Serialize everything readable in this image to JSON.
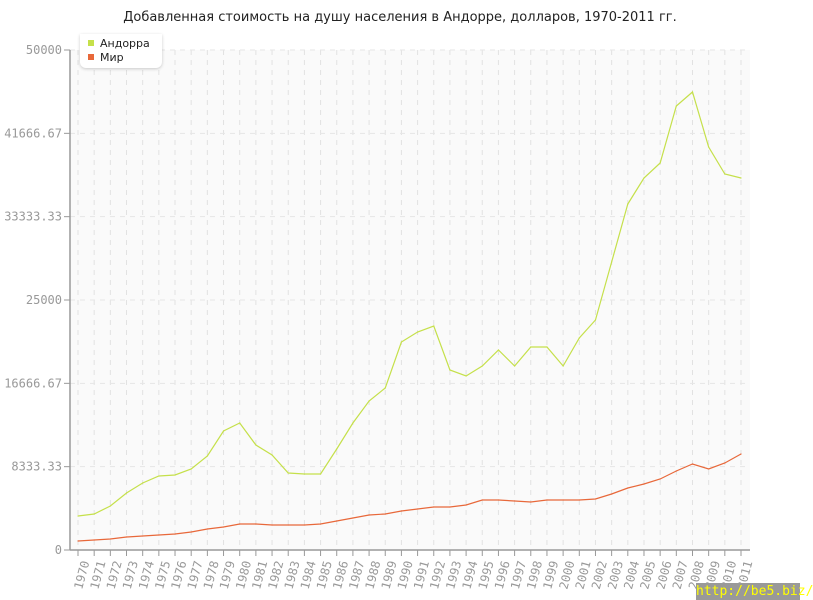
{
  "chart_data": {
    "type": "line",
    "title": "Добавленная стоимость на душу населения в Андорре, долларов, 1970-2011 гг.",
    "xlabel": "",
    "ylabel": "",
    "ylim": [
      0,
      50000
    ],
    "y_ticks": [
      "0",
      "8333.33",
      "16666.67",
      "25000",
      "33333.33",
      "41666.67",
      "50000"
    ],
    "grid": true,
    "legend": "top-left",
    "x": [
      1970,
      1971,
      1972,
      1973,
      1974,
      1975,
      1976,
      1977,
      1978,
      1979,
      1980,
      1981,
      1982,
      1983,
      1984,
      1985,
      1986,
      1987,
      1988,
      1989,
      1990,
      1991,
      1992,
      1993,
      1994,
      1995,
      1996,
      1997,
      1998,
      1999,
      2000,
      2001,
      2002,
      2003,
      2004,
      2005,
      2006,
      2007,
      2008,
      2009,
      2010,
      2011
    ],
    "series": [
      {
        "name": "Андорра",
        "color": "#c5e04a",
        "values": [
          3400,
          3600,
          4400,
          5700,
          6700,
          7400,
          7500,
          8100,
          9400,
          11900,
          12700,
          10500,
          9500,
          7700,
          7600,
          7600,
          10100,
          12700,
          14900,
          16200,
          20800,
          21800,
          22400,
          18000,
          17400,
          18400,
          20000,
          18400,
          20300,
          20300,
          18400,
          21200,
          23000,
          28800,
          34600,
          37200,
          38700,
          44400,
          45800,
          40300,
          37600,
          37200
        ]
      },
      {
        "name": "Мир",
        "color": "#e8683a",
        "values": [
          900,
          1000,
          1100,
          1300,
          1400,
          1500,
          1600,
          1800,
          2100,
          2300,
          2600,
          2600,
          2500,
          2500,
          2500,
          2600,
          2900,
          3200,
          3500,
          3600,
          3900,
          4100,
          4300,
          4300,
          4500,
          5000,
          5000,
          4900,
          4800,
          5000,
          5000,
          5000,
          5100,
          5600,
          6200,
          6600,
          7100,
          7900,
          8600,
          8100,
          8700,
          9600
        ]
      }
    ]
  },
  "watermark": "http://be5.biz/"
}
